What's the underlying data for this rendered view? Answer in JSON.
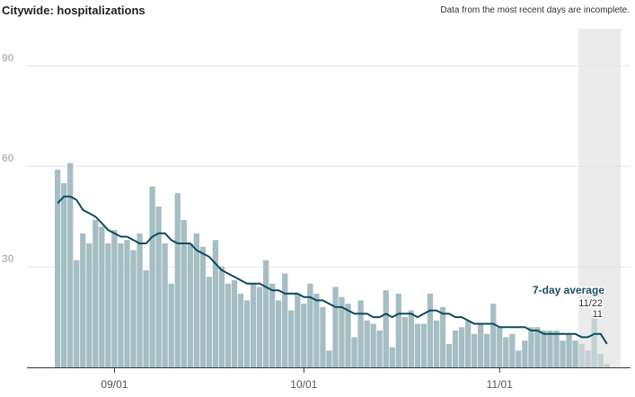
{
  "title": "Citywide: hospitalizations",
  "note": "Data from the most recent days are incomplete.",
  "colors": {
    "bar": "#a5bec4",
    "bar_incomplete": "#c3d1d4",
    "line": "#0e4a5e",
    "shade": "#ebebeb",
    "grid": "#e4e4e4"
  },
  "chart_data": {
    "type": "bar",
    "ylim": [
      0,
      100
    ],
    "yticks": [
      30,
      60,
      90
    ],
    "x_start": "08/23",
    "xticks": [
      {
        "label": "09/01",
        "index": 9
      },
      {
        "label": "10/01",
        "index": 39
      },
      {
        "label": "11/01",
        "index": 70
      }
    ],
    "incomplete_from_index": 83,
    "values": [
      59,
      55,
      61,
      32,
      40,
      37,
      44,
      42,
      37,
      41,
      37,
      38,
      35,
      40,
      29,
      54,
      48,
      37,
      25,
      52,
      44,
      37,
      40,
      36,
      27,
      38,
      30,
      25,
      26,
      22,
      20,
      25,
      24,
      32,
      25,
      20,
      28,
      17,
      22,
      19,
      25,
      22,
      18,
      5,
      24,
      21,
      19,
      9,
      20,
      14,
      13,
      11,
      23,
      6,
      22,
      15,
      17,
      13,
      13,
      22,
      14,
      18,
      7,
      11,
      12,
      14,
      10,
      13,
      10,
      19,
      12,
      9,
      10,
      5,
      8,
      12,
      12,
      11,
      11,
      11,
      8,
      10,
      8,
      7,
      5,
      15,
      4,
      1
    ],
    "avg": [
      49,
      51,
      51,
      50,
      47,
      46,
      45,
      43,
      41,
      40,
      39,
      39,
      38,
      37,
      37,
      39,
      40,
      40,
      38,
      37,
      37,
      37,
      35,
      34,
      33,
      31,
      29,
      28,
      27,
      26,
      25,
      25,
      25,
      24,
      23,
      23,
      22,
      22,
      22,
      21,
      21,
      20,
      20,
      19,
      18,
      18,
      17,
      16,
      16,
      16,
      15,
      15,
      16,
      15,
      16,
      16,
      16,
      15,
      16,
      17,
      17,
      16,
      16,
      15,
      15,
      14,
      13,
      13,
      13,
      13,
      12,
      12,
      12,
      12,
      12,
      11,
      11,
      10,
      10,
      10,
      10,
      10,
      10,
      9,
      9,
      10,
      10,
      7
    ],
    "series_label": "7-day average",
    "highlight": {
      "date": "11/22",
      "value": "11"
    }
  }
}
